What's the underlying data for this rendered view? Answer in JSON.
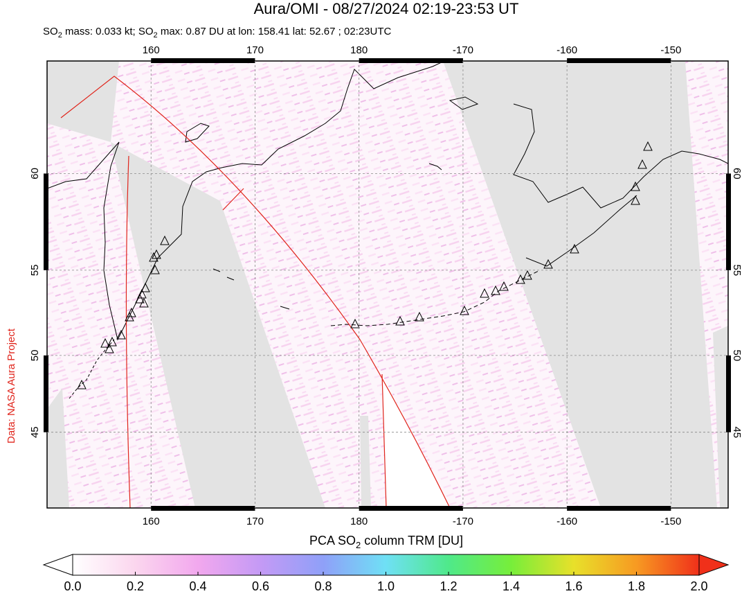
{
  "title": "Aura/OMI - 08/27/2024 02:19-23:53 UT",
  "subtitle": [
    "SO",
    "2",
    " mass: 0.033 kt; SO",
    "2",
    " max: 0.87 DU at lon: 158.41 lat: 52.67 ; 02:23UTC"
  ],
  "map": {
    "lon_limits": [
      150,
      -144.5
    ],
    "lat_limits": [
      39.6,
      65
    ],
    "lon_ticks": [
      160,
      170,
      180,
      -170,
      -160,
      -150
    ],
    "lat_ticks": [
      60,
      55,
      50,
      45
    ],
    "grid": true
  },
  "colorbar": {
    "label": [
      "PCA SO",
      "2",
      " column TRM [DU]"
    ],
    "range": [
      0,
      2
    ],
    "ticks": [
      {
        "value": 0,
        "label": "0.0"
      },
      {
        "value": 0.2,
        "label": "0.2"
      },
      {
        "value": 0.4,
        "label": "0.4"
      },
      {
        "value": 0.6,
        "label": "0.6"
      },
      {
        "value": 0.8,
        "label": "0.8"
      },
      {
        "value": 1,
        "label": "1.0"
      },
      {
        "value": 1.2,
        "label": "1.2"
      },
      {
        "value": 1.4,
        "label": "1.4"
      },
      {
        "value": 1.6,
        "label": "1.6"
      },
      {
        "value": 1.8,
        "label": "1.8"
      },
      {
        "value": 2,
        "label": "2.0"
      }
    ],
    "colors": [
      "#ffffff",
      "#fbd6ee",
      "#f2a8ee",
      "#c49af5",
      "#8fa0f8",
      "#6fe0f5",
      "#4fe98a",
      "#77ee3a",
      "#e8e02a",
      "#f79a22",
      "#f0301a"
    ]
  },
  "credit": "Data: NASA Aura Project"
}
